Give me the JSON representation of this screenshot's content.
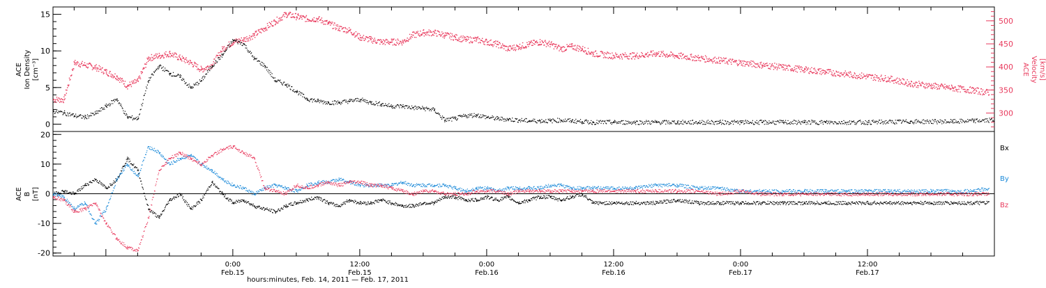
{
  "chart_data": [
    {
      "type": "scatter",
      "title": "",
      "xlabel": "",
      "ylabel_left": [
        "ACE",
        "Ion Density",
        "[cm⁻³]"
      ],
      "ylabel_right": [
        "ACE",
        "Velocity",
        "[km/s]"
      ],
      "x_unit": "hours after 2011-02-14 00:00",
      "xlim": [
        7,
        96
      ],
      "ylim_left": [
        -1,
        16
      ],
      "ylim_right": [
        260,
        530
      ],
      "yticks_left": [
        "0",
        "5",
        "10",
        "15"
      ],
      "yticks_right": [
        "300",
        "350",
        "400",
        "450",
        "500"
      ],
      "colors": {
        "density": "#000000",
        "velocity": "#e8395c"
      },
      "series": [
        {
          "name": "",
          "axis": "left",
          "x": [
            7,
            8,
            9,
            10,
            11,
            12,
            13,
            14,
            15,
            16,
            17,
            18,
            19,
            20,
            21,
            22,
            23,
            24,
            25,
            26,
            27,
            28,
            29,
            30,
            31,
            32,
            33,
            34,
            35,
            36,
            37,
            38,
            39,
            40,
            41,
            42,
            43,
            44,
            45,
            46,
            47,
            48,
            49,
            50,
            51,
            52,
            53,
            54,
            55,
            56,
            57,
            58,
            60,
            62,
            64,
            66,
            68,
            70,
            72,
            74,
            76,
            78,
            80,
            84,
            88,
            92,
            94,
            96
          ],
          "values": [
            1.8,
            1.6,
            1.2,
            1.0,
            1.5,
            2.5,
            3.5,
            1.0,
            0.8,
            6.0,
            8.0,
            7.0,
            6.5,
            5.0,
            6.0,
            8.0,
            9.5,
            11.5,
            11.0,
            9.0,
            8.0,
            6.0,
            5.5,
            4.5,
            3.5,
            3.2,
            3.0,
            3.0,
            3.2,
            3.4,
            3.0,
            2.8,
            2.5,
            2.5,
            2.3,
            2.2,
            2.0,
            0.6,
            0.8,
            1.2,
            1.3,
            1.0,
            0.8,
            0.7,
            0.6,
            0.5,
            0.5,
            0.5,
            0.6,
            0.5,
            0.4,
            0.3,
            0.3,
            0.3,
            0.3,
            0.3,
            0.3,
            0.3,
            0.3,
            0.3,
            0.3,
            0.3,
            0.3,
            0.3,
            0.4,
            0.4,
            0.5,
            0.6
          ]
        },
        {
          "name": "",
          "axis": "right",
          "x": [
            7,
            8,
            9,
            10,
            11,
            12,
            13,
            14,
            15,
            16,
            17,
            18,
            19,
            20,
            21,
            22,
            23,
            24,
            25,
            26,
            27,
            28,
            29,
            30,
            31,
            32,
            33,
            34,
            35,
            36,
            37,
            38,
            39,
            40,
            41,
            42,
            43,
            44,
            45,
            46,
            47,
            48,
            49,
            50,
            51,
            52,
            53,
            54,
            55,
            56,
            57,
            58,
            60,
            62,
            64,
            66,
            68,
            70,
            72,
            74,
            76,
            78,
            80,
            82,
            84,
            86,
            88,
            90,
            92,
            94,
            95.5
          ],
          "values": [
            330,
            330,
            410,
            405,
            400,
            390,
            380,
            360,
            370,
            420,
            425,
            430,
            420,
            410,
            395,
            405,
            440,
            455,
            460,
            470,
            485,
            500,
            515,
            510,
            505,
            505,
            495,
            485,
            480,
            465,
            460,
            455,
            455,
            455,
            470,
            475,
            475,
            470,
            465,
            460,
            460,
            455,
            450,
            440,
            445,
            450,
            455,
            450,
            440,
            445,
            440,
            430,
            425,
            425,
            430,
            425,
            420,
            415,
            410,
            405,
            400,
            395,
            390,
            385,
            380,
            375,
            365,
            360,
            355,
            350,
            345
          ]
        }
      ]
    },
    {
      "type": "scatter",
      "title": "",
      "xlabel": "hours:minutes, Feb. 14, 2011 — Feb. 17, 2011",
      "ylabel": [
        "ACE",
        "B",
        "[nT]"
      ],
      "x_unit": "hours after 2011-02-14 00:00",
      "xlim": [
        7,
        96
      ],
      "ylim": [
        -21,
        21
      ],
      "yticks": [
        "20",
        "10",
        "0",
        "-10",
        "-20"
      ],
      "xticks": [
        {
          "x": 24,
          "time": "0:00",
          "date": "Feb.15"
        },
        {
          "x": 36,
          "time": "12:00",
          "date": "Feb.15"
        },
        {
          "x": 48,
          "time": "0:00",
          "date": "Feb.16"
        },
        {
          "x": 60,
          "time": "12:00",
          "date": "Feb.16"
        },
        {
          "x": 72,
          "time": "0:00",
          "date": "Feb.17"
        },
        {
          "x": 84,
          "time": "12:00",
          "date": "Feb.17"
        }
      ],
      "legend": "right",
      "series": [
        {
          "name": "Bx",
          "color": "#000000",
          "x": [
            7,
            8,
            9,
            10,
            11,
            12,
            13,
            14,
            15,
            16,
            17,
            18,
            19,
            20,
            21,
            22,
            23,
            24,
            25,
            26,
            27,
            28,
            29,
            30,
            31,
            32,
            33,
            34,
            35,
            36,
            37,
            38,
            39,
            40,
            41,
            42,
            43,
            44,
            45,
            46,
            47,
            48,
            49,
            50,
            51,
            52,
            53,
            54,
            55,
            56,
            57,
            58,
            60,
            62,
            64,
            66,
            68,
            70,
            72,
            74,
            76,
            78,
            80,
            82,
            84,
            86,
            88,
            90,
            92,
            94,
            95.5
          ],
          "values": [
            0,
            1,
            0,
            3,
            5,
            2,
            5,
            12,
            8,
            -5,
            -8,
            -2,
            0,
            -5,
            -2,
            4,
            0,
            -3,
            -2,
            -4,
            -5,
            -6,
            -4,
            -3,
            -2,
            -1,
            -3,
            -4,
            -2,
            -3,
            -3,
            -2,
            -3,
            -4,
            -4,
            -3,
            -3,
            -1,
            -1,
            -2,
            -2,
            -1,
            -2,
            -1,
            -3,
            -2,
            -1,
            -1,
            -2,
            -1,
            0,
            -3,
            -3,
            -3,
            -3,
            -2,
            -3,
            -3,
            -3,
            -3,
            -3,
            -3,
            -3,
            -3,
            -3,
            -3,
            -3,
            -3,
            -3,
            -3,
            -3
          ]
        },
        {
          "name": "By",
          "color": "#1c8ad9",
          "x": [
            7,
            8,
            9,
            10,
            11,
            12,
            13,
            14,
            15,
            16,
            17,
            18,
            19,
            20,
            21,
            22,
            23,
            24,
            25,
            26,
            27,
            28,
            29,
            30,
            31,
            32,
            33,
            34,
            35,
            36,
            37,
            38,
            39,
            40,
            41,
            42,
            43,
            44,
            45,
            46,
            47,
            48,
            49,
            50,
            51,
            52,
            53,
            54,
            55,
            56,
            57,
            58,
            60,
            62,
            64,
            66,
            68,
            70,
            72,
            74,
            76,
            78,
            80,
            82,
            84,
            86,
            88,
            90,
            92,
            94,
            95.5
          ],
          "values": [
            0,
            -1,
            -5,
            -3,
            -10,
            -5,
            5,
            10,
            6,
            16,
            14,
            10,
            12,
            13,
            10,
            8,
            5,
            3,
            2,
            0,
            2,
            3,
            2,
            1,
            3,
            4,
            4,
            5,
            4,
            3,
            3,
            3,
            3,
            4,
            3,
            3,
            3,
            3,
            2,
            1,
            2,
            2,
            1,
            2,
            2,
            2,
            2,
            3,
            3,
            2,
            2,
            2,
            2,
            2,
            3,
            3,
            2,
            2,
            1,
            1,
            1,
            1,
            1,
            1,
            1,
            1,
            1,
            1,
            1,
            1,
            2
          ]
        },
        {
          "name": "Bz",
          "color": "#e8395c",
          "x": [
            7,
            8,
            9,
            10,
            11,
            12,
            13,
            14,
            15,
            16,
            17,
            18,
            19,
            20,
            21,
            22,
            23,
            24,
            25,
            26,
            27,
            28,
            29,
            30,
            31,
            32,
            33,
            34,
            35,
            36,
            37,
            38,
            39,
            40,
            41,
            42,
            43,
            44,
            45,
            46,
            47,
            48,
            49,
            50,
            51,
            52,
            53,
            54,
            55,
            56,
            57,
            58,
            60,
            62,
            64,
            66,
            68,
            70,
            72,
            74,
            76,
            78,
            80,
            82,
            84,
            86,
            88,
            90,
            92,
            94,
            95.5
          ],
          "values": [
            -1,
            -2,
            -6,
            -5,
            -3,
            -10,
            -15,
            -18,
            -19,
            -8,
            8,
            12,
            14,
            12,
            10,
            13,
            15,
            16,
            14,
            12,
            2,
            1,
            0,
            3,
            2,
            3,
            4,
            3,
            4,
            4,
            3,
            3,
            2,
            1,
            0,
            1,
            1,
            0,
            0,
            0,
            1,
            1,
            1,
            0,
            1,
            1,
            1,
            1,
            1,
            1,
            1,
            1,
            1,
            1,
            1,
            1,
            1,
            0,
            1,
            0,
            0,
            0,
            0,
            0,
            0,
            0,
            0,
            0,
            0,
            0,
            0
          ]
        }
      ]
    }
  ]
}
